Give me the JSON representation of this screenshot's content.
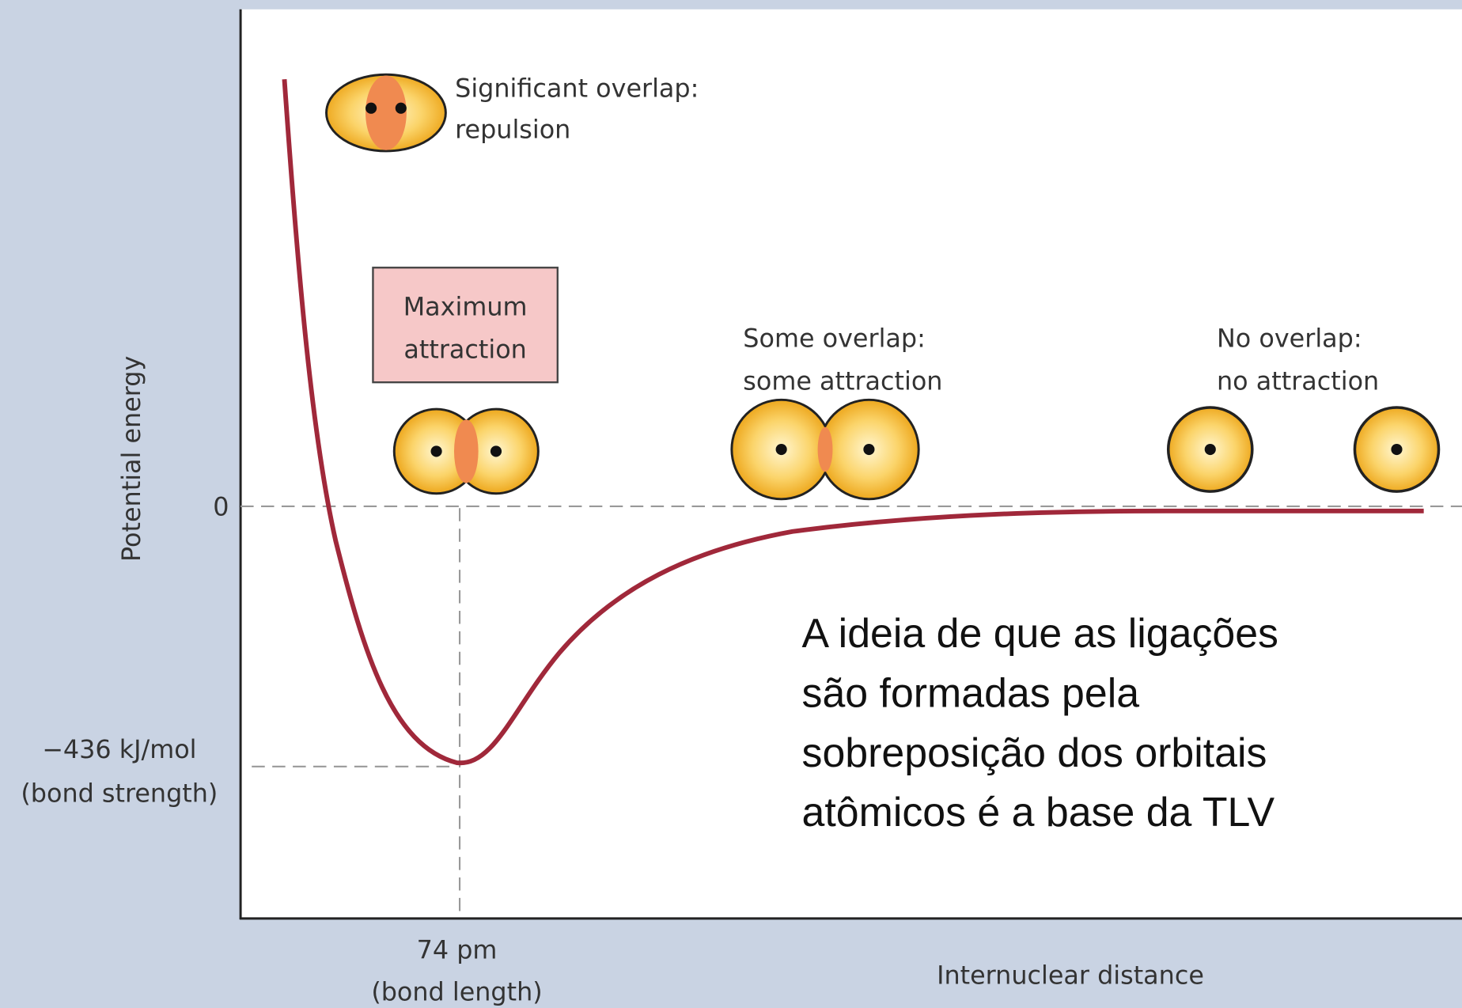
{
  "diagram": {
    "y_axis_label": "Potential energy",
    "x_axis_label": "Internuclear distance",
    "zero_label": "0",
    "min_energy": {
      "value": "−436 kJ/mol",
      "note": "(bond strength)"
    },
    "bond_length": {
      "value": "74 pm",
      "note": "(bond length)"
    },
    "states": [
      {
        "lines": [
          "Significant overlap:",
          "repulsion"
        ]
      },
      {
        "lines": [
          "Maximum",
          "attraction"
        ]
      },
      {
        "lines": [
          "Some overlap:",
          "some attraction"
        ]
      },
      {
        "lines": [
          "No overlap:",
          "no attraction"
        ]
      }
    ]
  },
  "caption": {
    "lines": [
      "A ideia de que as ligações",
      "são formadas pela",
      "sobreposição dos orbitais",
      "atômicos é a base da TLV"
    ]
  }
}
